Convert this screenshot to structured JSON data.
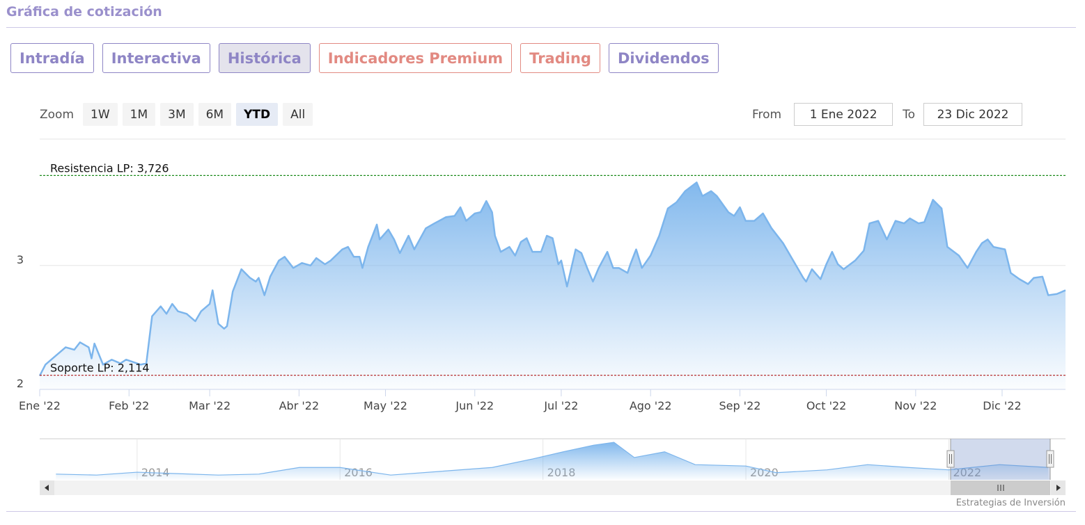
{
  "header": {
    "title": "Gráfica de cotización"
  },
  "tabs": [
    {
      "label": "Intradía",
      "color": "#8e85c5"
    },
    {
      "label": "Interactiva",
      "color": "#8e85c5"
    },
    {
      "label": "Histórica",
      "color": "#8e85c5"
    },
    {
      "label": "Indicadores Premium",
      "color": "#e28a82"
    },
    {
      "label": "Trading",
      "color": "#e28a82"
    },
    {
      "label": "Dividendos",
      "color": "#8e85c5"
    }
  ],
  "active_tab": 2,
  "zoom": {
    "label": "Zoom",
    "buttons": [
      "1W",
      "1M",
      "3M",
      "6M",
      "YTD",
      "All"
    ],
    "active": 4
  },
  "range": {
    "from_label": "From",
    "from": "1 Ene 2022",
    "to_label": "To",
    "to": "23 Dic 2022"
  },
  "credits": "Estrategias de Inversión",
  "chart_data": [
    {
      "type": "area",
      "color": "#7cb5ec",
      "x": [
        0,
        2,
        6,
        9,
        12,
        14,
        17,
        18,
        19,
        22,
        25,
        28,
        30,
        35,
        37,
        39,
        42,
        44,
        46,
        48,
        51,
        53,
        54,
        56,
        59,
        60,
        62,
        64,
        65,
        67,
        70,
        73,
        75,
        76,
        78,
        80,
        83,
        85,
        88,
        91,
        94,
        96,
        99,
        101,
        105,
        107,
        109,
        111,
        112,
        114,
        117,
        118,
        121,
        123,
        125,
        128,
        130,
        134,
        137,
        141,
        144,
        146,
        148,
        151,
        153,
        155,
        157,
        158,
        160,
        163,
        165,
        167,
        169,
        171,
        174,
        176,
        178,
        180,
        181,
        183,
        184,
        186,
        188,
        190,
        192,
        194,
        197,
        199,
        201,
        204,
        205,
        207,
        209,
        212,
        215,
        218,
        221,
        224,
        228,
        230,
        233,
        235,
        239,
        241,
        243,
        245,
        248,
        251,
        254,
        258,
        261,
        265,
        266,
        268,
        271,
        273,
        275,
        277,
        279,
        283,
        286,
        288,
        291,
        294,
        297,
        300,
        302,
        305,
        307,
        310,
        313,
        315,
        319,
        322,
        325,
        327,
        329,
        331,
        335,
        337,
        340,
        343,
        345,
        348,
        350,
        353,
        356
      ],
      "values": [
        2.11,
        2.2,
        2.28,
        2.34,
        2.32,
        2.38,
        2.34,
        2.25,
        2.37,
        2.2,
        2.24,
        2.21,
        2.24,
        2.2,
        2.21,
        2.59,
        2.67,
        2.61,
        2.69,
        2.63,
        2.61,
        2.57,
        2.55,
        2.63,
        2.69,
        2.8,
        2.53,
        2.49,
        2.51,
        2.79,
        2.97,
        2.9,
        2.87,
        2.9,
        2.76,
        2.91,
        3.04,
        3.07,
        2.98,
        3.02,
        3.0,
        3.06,
        3.01,
        3.04,
        3.13,
        3.15,
        3.07,
        3.07,
        2.98,
        3.15,
        3.33,
        3.21,
        3.29,
        3.21,
        3.1,
        3.24,
        3.13,
        3.3,
        3.34,
        3.39,
        3.4,
        3.47,
        3.36,
        3.42,
        3.43,
        3.52,
        3.43,
        3.24,
        3.11,
        3.15,
        3.08,
        3.19,
        3.22,
        3.11,
        3.11,
        3.24,
        3.22,
        3.01,
        3.04,
        2.83,
        2.93,
        3.13,
        3.1,
        2.98,
        2.87,
        2.98,
        3.11,
        2.98,
        2.98,
        2.94,
        3.01,
        3.13,
        2.98,
        3.08,
        3.24,
        3.46,
        3.51,
        3.6,
        3.67,
        3.56,
        3.6,
        3.56,
        3.43,
        3.4,
        3.47,
        3.36,
        3.36,
        3.42,
        3.3,
        3.18,
        3.06,
        2.9,
        2.87,
        2.97,
        2.89,
        3.01,
        3.11,
        3.01,
        2.97,
        3.04,
        3.12,
        3.34,
        3.36,
        3.21,
        3.36,
        3.34,
        3.38,
        3.34,
        3.35,
        3.53,
        3.46,
        3.15,
        3.08,
        2.98,
        3.11,
        3.18,
        3.21,
        3.15,
        3.13,
        2.94,
        2.89,
        2.85,
        2.9,
        2.91,
        2.76,
        2.77,
        2.8
      ],
      "xlim": [
        0,
        356
      ],
      "xticks": [
        {
          "value": 0,
          "label": "Ene '22"
        },
        {
          "value": 31,
          "label": "Feb '22"
        },
        {
          "value": 59,
          "label": "Mar '22"
        },
        {
          "value": 90,
          "label": "Abr '22"
        },
        {
          "value": 120,
          "label": "May '22"
        },
        {
          "value": 151,
          "label": "Jun '22"
        },
        {
          "value": 181,
          "label": "Jul '22"
        },
        {
          "value": 212,
          "label": "Ago '22"
        },
        {
          "value": 243,
          "label": "Sep '22"
        },
        {
          "value": 273,
          "label": "Oct '22"
        },
        {
          "value": 304,
          "label": "Nov '22"
        },
        {
          "value": 334,
          "label": "Dic '22"
        }
      ],
      "ylim": [
        2,
        4.02
      ],
      "yticks": [
        2,
        3
      ],
      "grid": true,
      "annotations": [
        {
          "label": "Resistencia LP: 3,726",
          "value": 3.726,
          "color": "#1a8a1a"
        },
        {
          "label": "Soporte LP: 2,114",
          "value": 2.114,
          "color": "#b01c1c"
        }
      ]
    },
    {
      "type": "area",
      "color": "#7cb5ec",
      "x": [
        2013.2,
        2013.6,
        2014.0,
        2014.4,
        2014.8,
        2015.2,
        2015.6,
        2016.0,
        2016.5,
        2017.0,
        2017.5,
        2017.9,
        2018.2,
        2018.5,
        2018.7,
        2018.9,
        2019.2,
        2019.5,
        2020.0,
        2020.3,
        2020.8,
        2021.2,
        2021.6,
        2022.0,
        2022.5,
        2022.98
      ],
      "values": [
        1.2,
        1.0,
        1.6,
        1.3,
        1.0,
        1.2,
        2.6,
        2.6,
        1.0,
        1.8,
        2.6,
        4.4,
        5.9,
        7.3,
        7.9,
        4.7,
        5.9,
        3.2,
        2.9,
        1.5,
        2.1,
        3.2,
        2.6,
        2.1,
        3.2,
        2.6
      ],
      "xlim": [
        2013.04,
        2023.15
      ],
      "xticks": [
        2014,
        2016,
        2018,
        2020,
        2022
      ],
      "ylim": [
        0,
        8.5
      ]
    }
  ]
}
